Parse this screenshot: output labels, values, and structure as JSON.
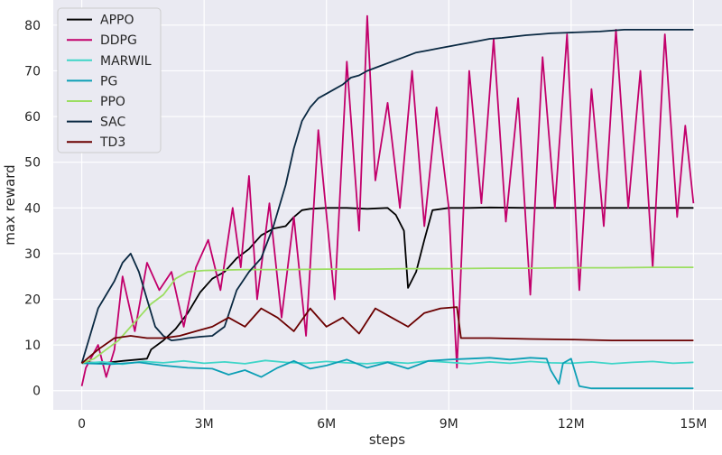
{
  "chart_data": {
    "type": "line",
    "title": "",
    "xlabel": "steps",
    "ylabel": "max reward",
    "xlim": [
      -0.7,
      15.7
    ],
    "ylim": [
      -4.2,
      85.5
    ],
    "x_ticks": [
      {
        "value": 0,
        "label": "0"
      },
      {
        "value": 3,
        "label": "3M"
      },
      {
        "value": 6,
        "label": "6M"
      },
      {
        "value": 9,
        "label": "9M"
      },
      {
        "value": 12,
        "label": "12M"
      },
      {
        "value": 15,
        "label": "15M"
      }
    ],
    "y_ticks": [
      0,
      10,
      20,
      30,
      40,
      50,
      60,
      70,
      80
    ],
    "grid": true,
    "legend_position": "top-left",
    "series": [
      {
        "name": "APPO",
        "color": "#000000",
        "x": [
          0,
          0.5,
          1.0,
          1.6,
          1.7,
          2.0,
          2.3,
          2.6,
          2.9,
          3.2,
          3.5,
          3.8,
          4.1,
          4.4,
          4.7,
          5.0,
          5.2,
          5.4,
          5.6,
          6.0,
          6.5,
          7.0,
          7.5,
          7.7,
          7.9,
          8.0,
          8.2,
          8.4,
          8.6,
          9.0,
          9.5,
          10.0,
          11.0,
          12.0,
          13.0,
          14.0,
          15.0
        ],
        "y": [
          6.3,
          6.0,
          6.5,
          7.0,
          9.0,
          11.0,
          13.5,
          17.0,
          21.5,
          24.5,
          26.0,
          29.0,
          31.0,
          34.0,
          35.5,
          36.0,
          38.0,
          39.5,
          39.8,
          40.0,
          40.0,
          39.8,
          40.0,
          38.5,
          35.0,
          22.5,
          26.0,
          33.0,
          39.5,
          40.0,
          40.0,
          40.1,
          40.0,
          40.0,
          40.0,
          40.0,
          40.0
        ]
      },
      {
        "name": "DDPG",
        "color": "#c2006b",
        "x": [
          0,
          0.1,
          0.4,
          0.6,
          0.8,
          1.0,
          1.3,
          1.6,
          1.9,
          2.2,
          2.5,
          2.8,
          3.1,
          3.4,
          3.7,
          3.9,
          4.1,
          4.3,
          4.6,
          4.9,
          5.2,
          5.5,
          5.8,
          6.2,
          6.5,
          6.8,
          7.0,
          7.2,
          7.5,
          7.8,
          8.1,
          8.4,
          8.7,
          9.0,
          9.2,
          9.5,
          9.8,
          10.1,
          10.4,
          10.7,
          11.0,
          11.3,
          11.6,
          11.9,
          12.2,
          12.5,
          12.8,
          13.1,
          13.4,
          13.7,
          14.0,
          14.3,
          14.6,
          14.8,
          15.0
        ],
        "y": [
          1.0,
          5.0,
          10.0,
          3.0,
          9.0,
          25.0,
          13.0,
          28.0,
          22.0,
          26.0,
          14.0,
          27.0,
          33.0,
          22.0,
          40.0,
          27.0,
          47.0,
          20.0,
          41.0,
          16.0,
          38.0,
          12.0,
          57.0,
          20.0,
          72.0,
          35.0,
          82.0,
          46.0,
          63.0,
          40.0,
          70.0,
          36.0,
          62.0,
          40.0,
          5.0,
          70.0,
          41.0,
          77.0,
          37.0,
          64.0,
          21.0,
          73.0,
          40.0,
          78.0,
          22.0,
          66.0,
          36.0,
          79.0,
          40.0,
          70.0,
          27.0,
          78.0,
          38.0,
          58.0,
          41.0
        ]
      },
      {
        "name": "MARWIL",
        "color": "#3fd5c8",
        "x": [
          0,
          0.5,
          1.0,
          1.5,
          2.0,
          2.5,
          3.0,
          3.5,
          4.0,
          4.5,
          5.0,
          5.5,
          6.0,
          6.5,
          7.0,
          7.5,
          8.0,
          8.5,
          9.0,
          9.5,
          10.0,
          10.5,
          11.0,
          11.5,
          12.0,
          12.5,
          13.0,
          13.5,
          14.0,
          14.5,
          15.0
        ],
        "y": [
          6.0,
          6.3,
          5.8,
          6.4,
          6.1,
          6.5,
          6.0,
          6.3,
          5.9,
          6.6,
          6.2,
          6.0,
          6.4,
          6.1,
          5.9,
          6.3,
          6.0,
          6.5,
          6.2,
          5.9,
          6.3,
          6.0,
          6.4,
          6.1,
          6.0,
          6.3,
          5.9,
          6.2,
          6.4,
          6.0,
          6.2
        ]
      },
      {
        "name": "PG",
        "color": "#0c9fb5",
        "x": [
          0,
          0.7,
          1.4,
          2.0,
          2.6,
          3.2,
          3.6,
          4.0,
          4.4,
          4.8,
          5.2,
          5.6,
          6.0,
          6.5,
          7.0,
          7.5,
          8.0,
          8.5,
          9.0,
          9.5,
          10.0,
          10.5,
          11.0,
          11.4,
          11.5,
          11.7,
          11.8,
          12.0,
          12.2,
          12.5,
          13.0,
          14.0,
          15.0
        ],
        "y": [
          6.0,
          5.8,
          6.2,
          5.5,
          5.0,
          4.8,
          3.5,
          4.5,
          3.0,
          5.0,
          6.5,
          4.8,
          5.5,
          6.8,
          5.0,
          6.2,
          4.8,
          6.5,
          6.8,
          7.0,
          7.2,
          6.8,
          7.2,
          7.0,
          4.5,
          1.5,
          6.0,
          7.0,
          1.0,
          0.5,
          0.5,
          0.5,
          0.5
        ]
      },
      {
        "name": "PPO",
        "color": "#9bde61",
        "x": [
          0,
          0.3,
          0.6,
          0.9,
          1.2,
          1.5,
          1.7,
          2.0,
          2.3,
          2.6,
          3.0,
          4.0,
          5.0,
          6.0,
          7.0,
          8.0,
          9.0,
          10.0,
          11.0,
          12.0,
          13.0,
          14.0,
          15.0
        ],
        "y": [
          6.0,
          7.0,
          9.0,
          11.0,
          14.0,
          17.0,
          19.0,
          21.0,
          24.5,
          26.0,
          26.3,
          26.5,
          26.5,
          26.6,
          26.6,
          26.7,
          26.7,
          26.8,
          26.8,
          26.9,
          26.9,
          27.0,
          27.0
        ]
      },
      {
        "name": "SAC",
        "color": "#0a2942",
        "x": [
          0,
          0.2,
          0.4,
          0.6,
          0.8,
          1.0,
          1.2,
          1.4,
          1.6,
          1.8,
          2.0,
          2.2,
          2.4,
          2.6,
          2.9,
          3.2,
          3.5,
          3.8,
          4.1,
          4.4,
          4.7,
          5.0,
          5.2,
          5.4,
          5.6,
          5.8,
          6.0,
          6.2,
          6.4,
          6.6,
          6.8,
          7.0,
          7.3,
          7.6,
          7.9,
          8.2,
          8.5,
          8.8,
          9.1,
          9.4,
          9.7,
          10.0,
          10.3,
          10.6,
          10.9,
          11.2,
          11.5,
          11.8,
          12.1,
          12.4,
          12.7,
          13.0,
          13.3,
          13.6,
          13.9,
          14.2,
          14.5,
          14.8,
          15.0
        ],
        "y": [
          6.0,
          12.0,
          18.0,
          21.0,
          24.0,
          28.0,
          30.0,
          26.0,
          20.0,
          14.0,
          12.0,
          11.0,
          11.2,
          11.5,
          11.8,
          12.0,
          14.0,
          22.0,
          26.0,
          29.0,
          36.0,
          45.0,
          53.0,
          59.0,
          62.0,
          64.0,
          65.0,
          66.0,
          67.0,
          68.5,
          69.0,
          70.0,
          71.0,
          72.0,
          73.0,
          74.0,
          74.5,
          75.0,
          75.5,
          76.0,
          76.5,
          77.0,
          77.2,
          77.5,
          77.8,
          78.0,
          78.2,
          78.3,
          78.4,
          78.5,
          78.6,
          78.8,
          79.0,
          79.0,
          79.0,
          79.0,
          79.0,
          79.0,
          79.0
        ]
      },
      {
        "name": "TD3",
        "color": "#6b0000",
        "x": [
          0,
          0.4,
          0.8,
          1.2,
          1.6,
          2.0,
          2.4,
          2.8,
          3.2,
          3.6,
          4.0,
          4.4,
          4.8,
          5.2,
          5.6,
          6.0,
          6.4,
          6.8,
          7.2,
          7.6,
          8.0,
          8.4,
          8.8,
          9.2,
          9.3,
          9.5,
          10.0,
          11.0,
          12.0,
          13.0,
          14.0,
          15.0
        ],
        "y": [
          6.0,
          9.0,
          11.5,
          12.0,
          11.5,
          11.5,
          12.0,
          13.0,
          14.0,
          16.0,
          14.0,
          18.0,
          16.0,
          13.0,
          18.0,
          14.0,
          16.0,
          12.5,
          18.0,
          16.0,
          14.0,
          17.0,
          18.0,
          18.3,
          11.5,
          11.5,
          11.5,
          11.3,
          11.2,
          11.0,
          11.0,
          11.0
        ]
      }
    ]
  }
}
